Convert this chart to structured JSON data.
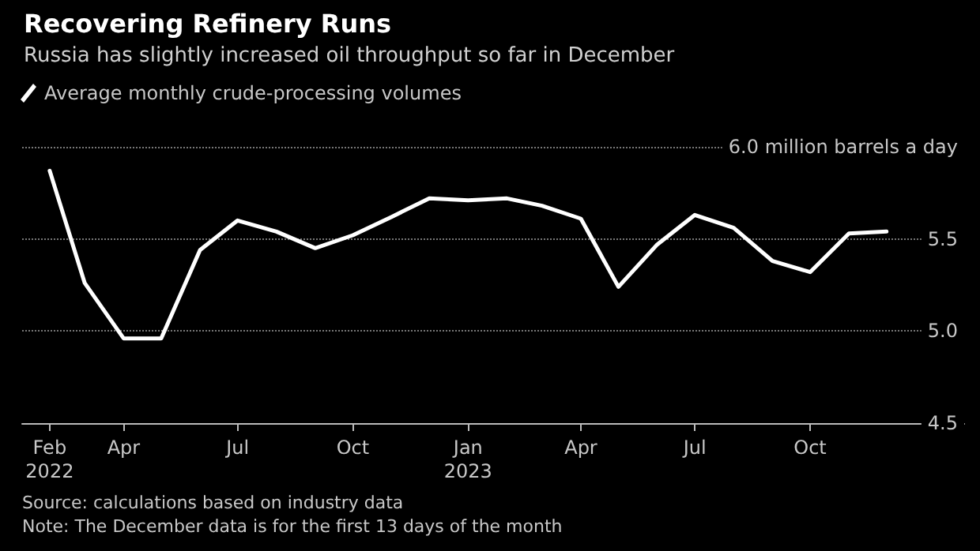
{
  "chart_data": {
    "type": "line",
    "title": "Recovering Refinery Runs",
    "subtitle": "Russia has slightly increased oil throughput so far in December",
    "x": [
      "2022-02",
      "2022-03",
      "2022-04",
      "2022-05",
      "2022-06",
      "2022-07",
      "2022-08",
      "2022-09",
      "2022-10",
      "2022-11",
      "2022-12",
      "2023-01",
      "2023-02",
      "2023-03",
      "2023-04",
      "2023-05",
      "2023-06",
      "2023-07",
      "2023-08",
      "2023-09",
      "2023-10",
      "2023-11",
      "2023-12"
    ],
    "series": [
      {
        "name": "Average monthly crude-processing volumes",
        "color": "#ffffff",
        "values": [
          5.87,
          5.26,
          4.96,
          4.96,
          5.44,
          5.6,
          5.54,
          5.45,
          5.52,
          5.62,
          5.72,
          5.71,
          5.72,
          5.68,
          5.61,
          5.24,
          5.47,
          5.63,
          5.56,
          5.38,
          5.32,
          5.53,
          5.54
        ]
      }
    ],
    "xlim": [
      "2022-01-10",
      "2024-02-01"
    ],
    "xticks": [
      {
        "value": "2022-02",
        "label": "Feb 2022"
      },
      {
        "value": "2022-04",
        "label": "Apr"
      },
      {
        "value": "2022-07",
        "label": "Jul"
      },
      {
        "value": "2022-10",
        "label": "Oct"
      },
      {
        "value": "2023-01",
        "label": "Jan 2023"
      },
      {
        "value": "2023-04",
        "label": "Apr"
      },
      {
        "value": "2023-07",
        "label": "Jul"
      },
      {
        "value": "2023-10",
        "label": "Oct"
      }
    ],
    "ylim": [
      4.5,
      6.0
    ],
    "yticks": [
      4.5,
      {
        "value": 5.0,
        "label": "5.0"
      },
      5.5,
      {
        "value": 6.0,
        "label": "6.0 million barrels a day"
      }
    ],
    "grid": "y",
    "legend": "top left",
    "marker": "none",
    "line_style": "solid",
    "annotations": [
      "Source: calculations based on industry data",
      "Note: The December data is for the first 13 days of the month"
    ]
  }
}
